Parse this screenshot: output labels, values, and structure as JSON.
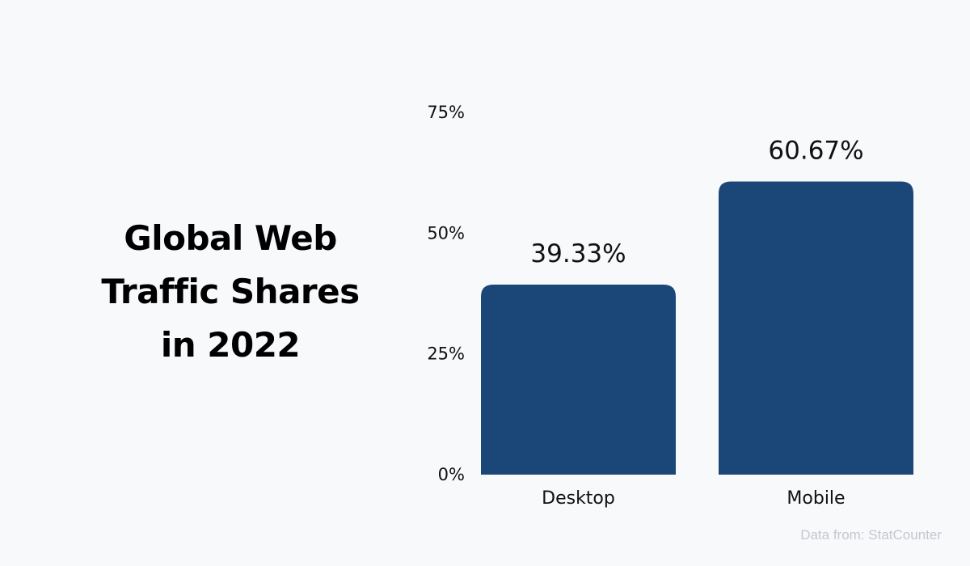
{
  "title_lines": [
    "Global Web",
    "Traffic Shares",
    "in 2022"
  ],
  "source_note": "Data from: StatCounter",
  "colors": {
    "bar": "#1a4778",
    "text": "#111111",
    "background": "#f8f9fb"
  },
  "chart_data": {
    "type": "bar",
    "title": "Global Web Traffic Shares in 2022",
    "categories": [
      "Desktop",
      "Mobile"
    ],
    "values": [
      39.33,
      60.67
    ],
    "value_labels": [
      "39.33%",
      "60.67%"
    ],
    "yticks": [
      0,
      25,
      50,
      75
    ],
    "ytick_labels": [
      "0%",
      "25%",
      "50%",
      "75%"
    ],
    "ylim": [
      0,
      75
    ],
    "xlabel": "",
    "ylabel": "",
    "grid": false,
    "legend": "none"
  }
}
